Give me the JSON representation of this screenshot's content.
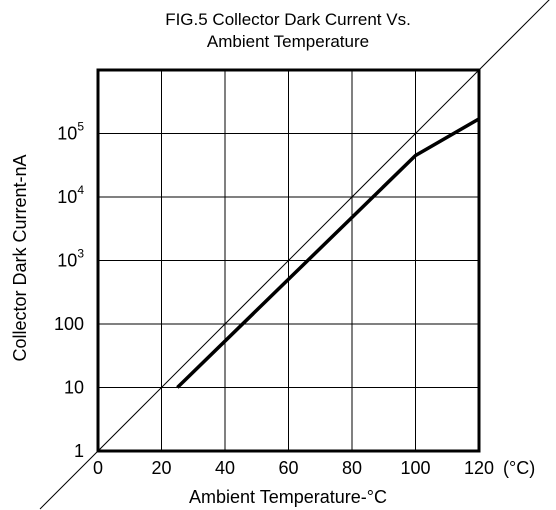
{
  "chart_data": {
    "type": "line",
    "title_line1": "FIG.5 Collector Dark Current Vs.",
    "title_line2": "Ambient Temperature",
    "xlabel": "Ambient Temperature-°C",
    "ylabel": "Collector Dark Current-nA",
    "x_unit_label": "(°C)",
    "xlim": [
      0,
      120
    ],
    "ylim": [
      1,
      1000000
    ],
    "y_scale": "log",
    "grid": true,
    "x_ticks": [
      {
        "value": 0,
        "label": "0"
      },
      {
        "value": 20,
        "label": "20"
      },
      {
        "value": 40,
        "label": "40"
      },
      {
        "value": 60,
        "label": "60"
      },
      {
        "value": 80,
        "label": "80"
      },
      {
        "value": 100,
        "label": "100"
      },
      {
        "value": 120,
        "label": "120"
      }
    ],
    "y_ticks": [
      {
        "value": 1,
        "base": "1",
        "exp": ""
      },
      {
        "value": 10,
        "base": "10",
        "exp": ""
      },
      {
        "value": 100,
        "base": "100",
        "exp": ""
      },
      {
        "value": 1000,
        "base": "10",
        "exp": "3"
      },
      {
        "value": 10000,
        "base": "10",
        "exp": "4"
      },
      {
        "value": 100000,
        "base": "10",
        "exp": "5"
      }
    ],
    "series": [
      {
        "x": [
          25,
          100,
          120
        ],
        "y": [
          10,
          45000,
          170000
        ]
      }
    ],
    "diagonal_line": {
      "x": [
        0,
        120
      ],
      "y": [
        1,
        1000000
      ]
    }
  }
}
